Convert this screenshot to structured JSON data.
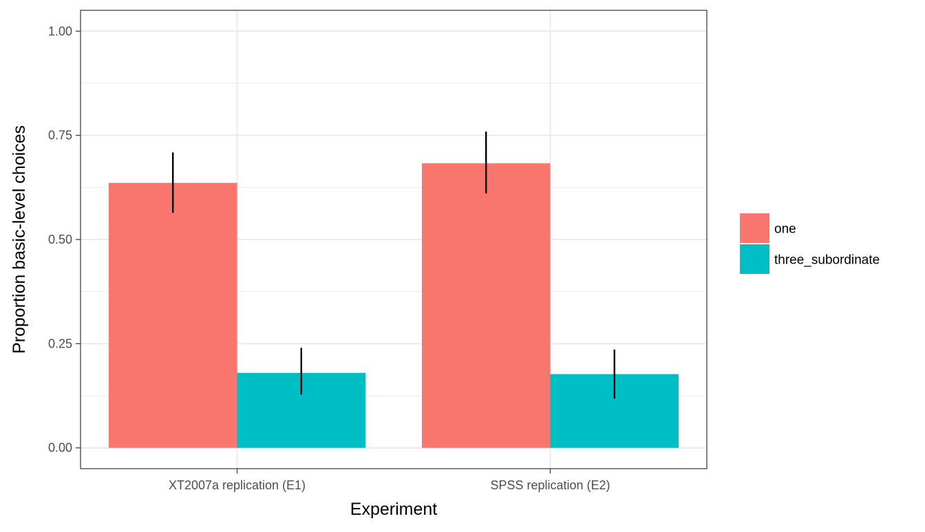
{
  "chart_data": {
    "type": "bar",
    "xlabel": "Experiment",
    "ylabel": "Proportion basic-level choices",
    "ylim": [
      -0.05,
      1.05
    ],
    "yticks": [
      0.0,
      0.25,
      0.5,
      0.75,
      1.0
    ],
    "ytick_labels": [
      "0.00",
      "0.25",
      "0.50",
      "0.75",
      "1.00"
    ],
    "categories": [
      "XT2007a replication (E1)",
      "SPSS replication (E2)"
    ],
    "series": [
      {
        "name": "one",
        "color": "#F8766D",
        "values": [
          0.636,
          0.683
        ],
        "error_low": [
          0.564,
          0.611
        ],
        "error_high": [
          0.709,
          0.759
        ]
      },
      {
        "name": "three_subordinate",
        "color": "#00BFC4",
        "values": [
          0.18,
          0.177
        ],
        "error_low": [
          0.128,
          0.118
        ],
        "error_high": [
          0.24,
          0.236
        ]
      }
    ],
    "legend_position": "right",
    "grid": true,
    "theme": "bw"
  }
}
